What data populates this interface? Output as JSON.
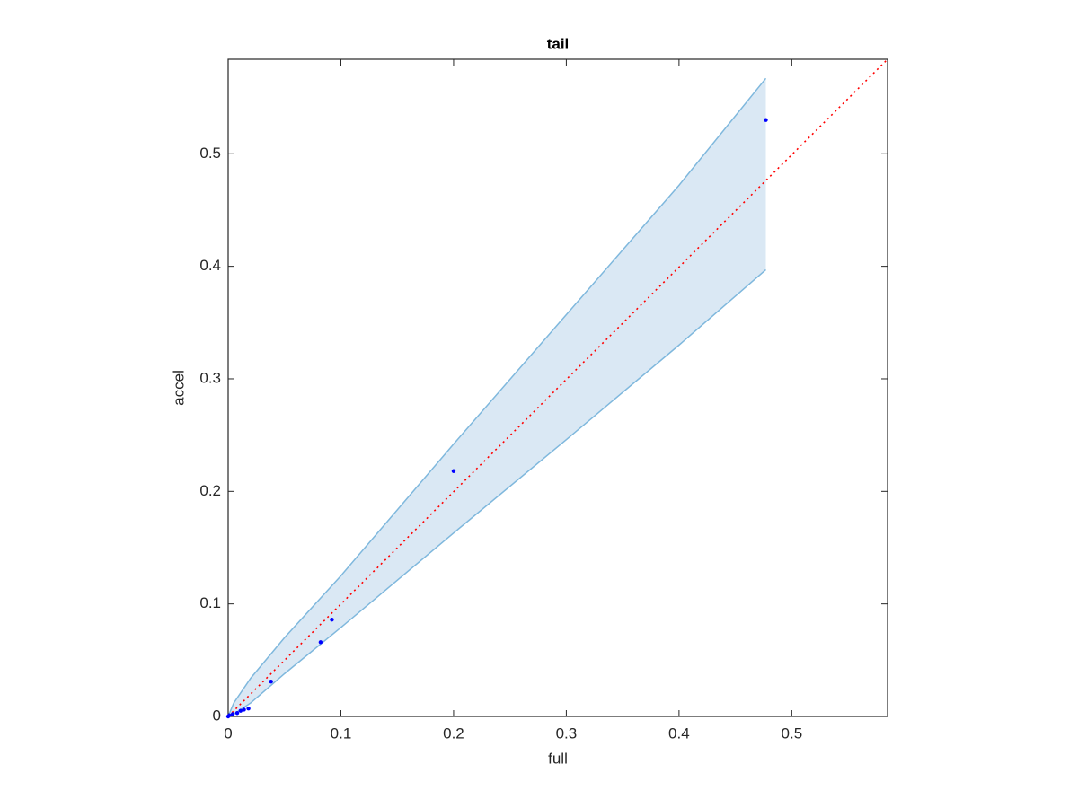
{
  "chart_data": {
    "type": "scatter",
    "title": "tail",
    "x_label": "full",
    "y_label": "accel",
    "xlim": [
      0,
      0.585
    ],
    "ylim": [
      0,
      0.584
    ],
    "xticks": [
      0,
      0.1,
      0.2,
      0.3,
      0.4,
      0.5
    ],
    "yticks": [
      0,
      0.1,
      0.2,
      0.3,
      0.4,
      0.5
    ],
    "color": "#0000ff",
    "x": [
      0,
      0.001,
      0.004,
      0.008,
      0.011,
      0.014,
      0.018,
      0.038,
      0.082,
      0.092,
      0.2,
      0.477
    ],
    "values": [
      0,
      0.001,
      0.002,
      0.003,
      0.005,
      0.006,
      0.007,
      0.031,
      0.066,
      0.086,
      0.218,
      0.53
    ],
    "band": {
      "color": "#7fb8dd",
      "fill": "#dae8f4",
      "x": [
        0,
        0.005,
        0.02,
        0.05,
        0.1,
        0.2,
        0.3,
        0.4,
        0.477
      ],
      "upper": [
        0,
        0.012,
        0.034,
        0.07,
        0.125,
        0.242,
        0.357,
        0.472,
        0.567
      ],
      "lower": [
        0,
        0.002,
        0.012,
        0.038,
        0.079,
        0.163,
        0.246,
        0.33,
        0.397
      ]
    },
    "reference_line": {
      "color": "#ff0000",
      "x": [
        0,
        0.585
      ],
      "y": [
        0,
        0.584
      ]
    }
  }
}
